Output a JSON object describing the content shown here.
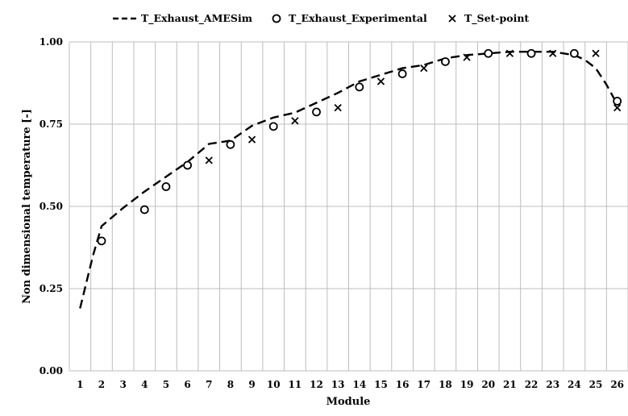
{
  "chart_data": {
    "type": "line",
    "title": "",
    "xlabel": "Module",
    "ylabel": "Non dimensional temperature [-]",
    "categories": [
      "1",
      "2",
      "3",
      "4",
      "5",
      "6",
      "7",
      "8",
      "9",
      "10",
      "11",
      "12",
      "13",
      "14",
      "15",
      "16",
      "17",
      "18",
      "19",
      "20",
      "21",
      "22",
      "23",
      "24",
      "25",
      "26"
    ],
    "y_ticks": [
      "0.00",
      "0.25",
      "0.50",
      "0.75",
      "1.00"
    ],
    "ylim": [
      0,
      1
    ],
    "grid": "vertical",
    "legend_position": "top",
    "series": [
      {
        "name": "T_Exhaust_AMESim",
        "marker": "dashed-line",
        "color": "#000000",
        "x": [
          1,
          1.3,
          1.6,
          2,
          3,
          4,
          5,
          6,
          7,
          8,
          9,
          10,
          11,
          12,
          13,
          14,
          15,
          16,
          17,
          18,
          19,
          20,
          21,
          22,
          23,
          24,
          24.5,
          25,
          25.5,
          26
        ],
        "values": [
          0.19,
          0.27,
          0.35,
          0.44,
          0.495,
          0.545,
          0.59,
          0.635,
          0.69,
          0.7,
          0.745,
          0.77,
          0.785,
          0.815,
          0.845,
          0.88,
          0.9,
          0.92,
          0.93,
          0.95,
          0.96,
          0.965,
          0.97,
          0.97,
          0.97,
          0.96,
          0.945,
          0.92,
          0.87,
          0.81
        ]
      },
      {
        "name": "T_Exhaust_Experimental",
        "marker": "circle",
        "color": "#000000",
        "x": [
          2,
          4,
          5,
          6,
          8,
          10,
          12,
          14,
          16,
          18,
          20,
          22,
          24,
          26
        ],
        "values": [
          0.395,
          0.49,
          0.56,
          0.625,
          0.688,
          0.743,
          0.787,
          0.863,
          0.903,
          0.94,
          0.965,
          0.965,
          0.965,
          0.82
        ]
      },
      {
        "name": "T_Set-point",
        "marker": "x",
        "color": "#000000",
        "x": [
          7,
          9,
          11,
          13,
          15,
          17,
          19,
          21,
          23,
          25,
          26
        ],
        "values": [
          0.64,
          0.703,
          0.76,
          0.8,
          0.88,
          0.92,
          0.953,
          0.965,
          0.965,
          0.965,
          0.8
        ]
      }
    ]
  }
}
